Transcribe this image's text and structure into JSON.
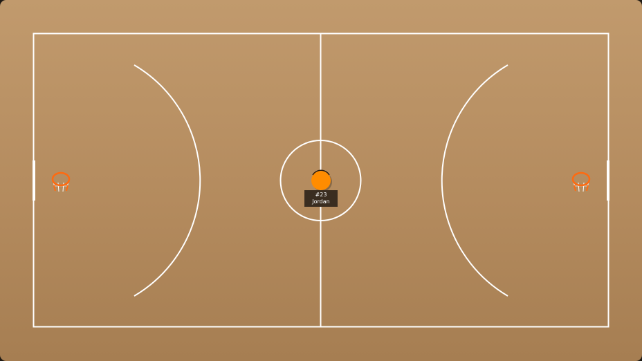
{
  "court": {
    "surface_color": "#b8905f",
    "line_color": "#ffffff",
    "rim_color": "#ff6a10",
    "ball_color": "#ff8c00"
  },
  "player": {
    "number": "#23",
    "name": "Jordan"
  },
  "hoops": [
    {
      "side": "left",
      "icon": "hoop-icon"
    },
    {
      "side": "right",
      "icon": "hoop-icon"
    }
  ]
}
